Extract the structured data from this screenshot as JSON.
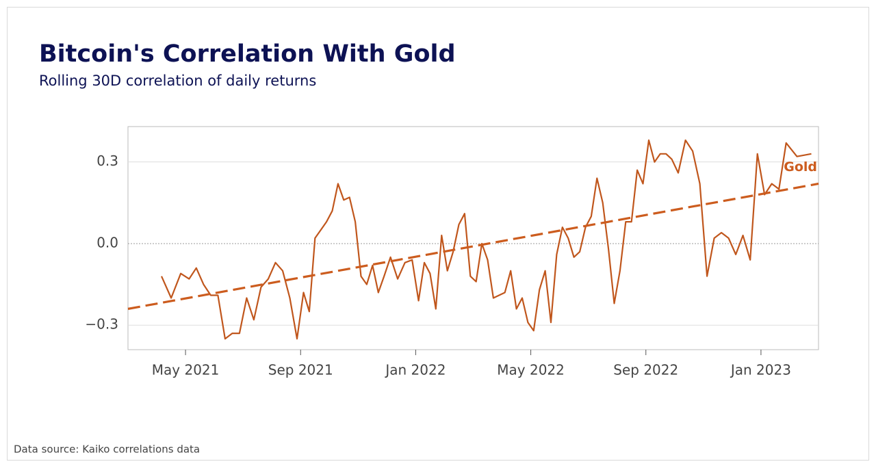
{
  "chart_data": {
    "type": "line",
    "title": "Bitcoin's Correlation With Gold",
    "subtitle": "Rolling 30D correlation of daily returns",
    "source": "Data source: Kaiko correlations data",
    "annotation": "Gold",
    "xlim": [
      "2021-03",
      "2023-03"
    ],
    "xticks": [
      {
        "value": "2021-05",
        "label": "May 2021"
      },
      {
        "value": "2021-09",
        "label": "Sep 2021"
      },
      {
        "value": "2022-01",
        "label": "Jan 2022"
      },
      {
        "value": "2022-05",
        "label": "May 2022"
      },
      {
        "value": "2022-09",
        "label": "Sep 2022"
      },
      {
        "value": "2023-01",
        "label": "Jan 2023"
      }
    ],
    "ylim": [
      -0.39,
      0.43
    ],
    "yticks": [
      {
        "value": -0.3,
        "label": "−0.3"
      },
      {
        "value": 0,
        "label": "0.0"
      },
      0.3
    ],
    "grid": true,
    "series": [
      {
        "name": "Gold",
        "color": "#c0561c",
        "x": [
          "2021-04",
          "2021-04",
          "2021-04",
          "2021-05",
          "2021-05",
          "2021-05",
          "2021-05",
          "2021-06",
          "2021-06",
          "2021-06",
          "2021-06",
          "2021-07",
          "2021-07",
          "2021-07",
          "2021-07",
          "2021-08",
          "2021-08",
          "2021-08",
          "2021-08",
          "2021-09",
          "2021-09",
          "2021-09",
          "2021-09",
          "2021-09",
          "2021-10",
          "2021-10",
          "2021-10",
          "2021-10",
          "2021-10",
          "2021-11",
          "2021-11",
          "2021-11",
          "2021-11",
          "2021-11",
          "2021-12",
          "2021-12",
          "2021-12",
          "2021-12",
          "2022-01",
          "2022-01",
          "2022-01",
          "2022-01",
          "2022-01",
          "2022-02",
          "2022-02",
          "2022-02",
          "2022-02",
          "2022-02",
          "2022-03",
          "2022-03",
          "2022-03",
          "2022-03",
          "2022-03",
          "2022-04",
          "2022-04",
          "2022-04",
          "2022-04",
          "2022-04",
          "2022-05",
          "2022-05",
          "2022-05",
          "2022-05",
          "2022-05",
          "2022-06",
          "2022-06",
          "2022-06",
          "2022-06",
          "2022-06",
          "2022-07",
          "2022-07",
          "2022-07",
          "2022-07",
          "2022-07",
          "2022-08",
          "2022-08",
          "2022-08",
          "2022-08",
          "2022-08",
          "2022-09",
          "2022-09",
          "2022-09",
          "2022-09",
          "2022-09",
          "2022-10",
          "2022-10",
          "2022-10",
          "2022-10",
          "2022-11",
          "2022-11",
          "2022-11",
          "2022-11",
          "2022-12",
          "2022-12",
          "2022-12",
          "2022-12",
          "2023-01",
          "2023-01",
          "2023-01",
          "2023-01",
          "2023-02",
          "2023-02"
        ],
        "values": [
          -0.12,
          -0.2,
          -0.11,
          -0.13,
          -0.09,
          -0.15,
          -0.19,
          -0.19,
          -0.35,
          -0.33,
          -0.33,
          -0.2,
          -0.28,
          -0.16,
          -0.13,
          -0.07,
          -0.1,
          -0.2,
          -0.35,
          -0.18,
          -0.25,
          0.02,
          0.05,
          0.08,
          0.12,
          0.22,
          0.16,
          0.17,
          0.08,
          -0.12,
          -0.15,
          -0.08,
          -0.18,
          -0.12,
          -0.05,
          -0.13,
          -0.07,
          -0.06,
          -0.21,
          -0.07,
          -0.11,
          -0.24,
          0.03,
          -0.1,
          -0.03,
          0.07,
          0.11,
          -0.12,
          -0.14,
          0.0,
          -0.06,
          -0.2,
          -0.19,
          -0.18,
          -0.1,
          -0.24,
          -0.2,
          -0.29,
          -0.32,
          -0.17,
          -0.1,
          -0.29,
          -0.04,
          0.06,
          0.02,
          -0.05,
          -0.03,
          0.06,
          0.1,
          0.24,
          0.15,
          -0.02,
          -0.22,
          -0.1,
          0.08,
          0.08,
          0.27,
          0.22,
          0.38,
          0.3,
          0.33,
          0.33,
          0.31,
          0.26,
          0.38,
          0.34,
          0.22,
          -0.12,
          0.02,
          0.04,
          0.02,
          -0.04,
          0.03,
          -0.06,
          0.33,
          0.18,
          0.22,
          0.2,
          0.37,
          0.32,
          0.33
        ]
      }
    ],
    "trend": {
      "color": "#cc5c1e",
      "x": [
        "2021-03",
        "2023-03"
      ],
      "values": [
        -0.24,
        0.22
      ]
    }
  }
}
